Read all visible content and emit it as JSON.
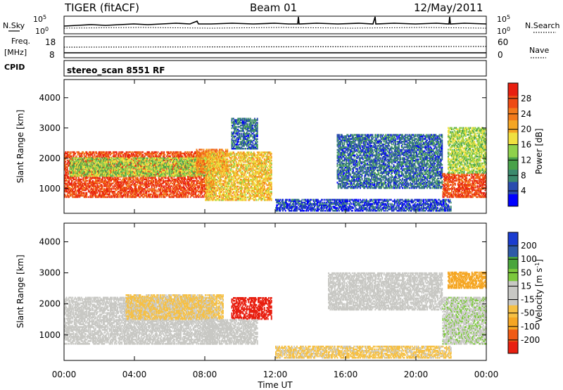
{
  "header": {
    "radar": "TIGER (fitACF)",
    "beam": "Beam 01",
    "date": "12/May/2011"
  },
  "noise_panel": {
    "left_label": "N.Sky",
    "right_label": "N.Search",
    "ticks_top": "10^5",
    "ticks_bottom": "10^0"
  },
  "freq_panel": {
    "left_label_1": "Freq.",
    "left_label_2": "[MHz]",
    "left_tick_top": "18",
    "left_tick_bottom": "8",
    "right_label": "Nave",
    "right_tick_top": "60",
    "right_tick_bottom": "0"
  },
  "cpid_panel": {
    "label": "CPID",
    "text": "stereo_scan 8551 RF"
  },
  "time_axis": {
    "label": "Time UT",
    "ticks": [
      "00:00",
      "04:00",
      "08:00",
      "12:00",
      "16:00",
      "20:00",
      "00:00"
    ]
  },
  "range_axis": {
    "label": "Slant Range [km]",
    "ticks": [
      "1000",
      "2000",
      "3000",
      "4000"
    ]
  },
  "colors": {
    "power_scale": [
      "#0000ff",
      "#2a4cae",
      "#3b8a6e",
      "#49a24a",
      "#8fd14b",
      "#f0e040",
      "#f5a623",
      "#f27a1a",
      "#ee4b14",
      "#e81f10"
    ],
    "velocity_scale": [
      "#e81f10",
      "#f05a14",
      "#f5a623",
      "#f6c044",
      "#c8c8c4",
      "#c8c8c4",
      "#7cc83c",
      "#4aa53c",
      "#2e5aa8",
      "#1a3cd0"
    ]
  },
  "chart_data": [
    {
      "type": "heatmap",
      "title": "",
      "xlabel": "Time UT",
      "ylabel": "Slant Range [km]",
      "xlim": [
        "00:00",
        "24:00"
      ],
      "ylim": [
        180,
        4600
      ],
      "colorbar": {
        "label": "Power [dB]",
        "ticks": [
          "4",
          "8",
          "12",
          "16",
          "20",
          "24",
          "28"
        ],
        "range": [
          0,
          30
        ]
      },
      "regions": [
        {
          "t_start": 0.0,
          "t_end": 8.5,
          "r_min": 700,
          "r_max": 2200,
          "power": 26
        },
        {
          "t_start": 0.3,
          "t_end": 8.0,
          "r_min": 1400,
          "r_max": 2000,
          "power": 14
        },
        {
          "t_start": 7.5,
          "t_end": 9.3,
          "r_min": 1500,
          "r_max": 2300,
          "power": 22
        },
        {
          "t_start": 8.0,
          "t_end": 11.8,
          "r_min": 600,
          "r_max": 2200,
          "power": 18
        },
        {
          "t_start": 9.5,
          "t_end": 11.0,
          "r_min": 2300,
          "r_max": 3300,
          "power": 6
        },
        {
          "t_start": 12.0,
          "t_end": 22.0,
          "r_min": 250,
          "r_max": 650,
          "power": 4
        },
        {
          "t_start": 15.5,
          "t_end": 21.5,
          "r_min": 1000,
          "r_max": 2800,
          "power": 6
        },
        {
          "t_start": 21.5,
          "t_end": 24.0,
          "r_min": 700,
          "r_max": 1500,
          "power": 26
        },
        {
          "t_start": 21.8,
          "t_end": 24.0,
          "r_min": 1500,
          "r_max": 3000,
          "power": 14
        }
      ]
    },
    {
      "type": "heatmap",
      "title": "",
      "xlabel": "Time UT",
      "ylabel": "Slant Range [km]",
      "xlim": [
        "00:00",
        "24:00"
      ],
      "ylim": [
        180,
        4600
      ],
      "colorbar": {
        "label": "Velocity [m s^-1]",
        "ticks": [
          "-200",
          "-100",
          "-50",
          "-15",
          "15",
          "50",
          "100",
          "200"
        ],
        "range": [
          -250,
          250
        ]
      },
      "regions": [
        {
          "t_start": 0.0,
          "t_end": 8.5,
          "r_min": 700,
          "r_max": 2200,
          "velocity": 0
        },
        {
          "t_start": 3.5,
          "t_end": 9.0,
          "r_min": 1500,
          "r_max": 2300,
          "velocity": -60
        },
        {
          "t_start": 9.5,
          "t_end": 11.8,
          "r_min": 1500,
          "r_max": 2200,
          "velocity": -220
        },
        {
          "t_start": 8.0,
          "t_end": 11.0,
          "r_min": 700,
          "r_max": 1500,
          "velocity": 0
        },
        {
          "t_start": 12.0,
          "t_end": 22.0,
          "r_min": 250,
          "r_max": 650,
          "velocity": -60
        },
        {
          "t_start": 15.0,
          "t_end": 21.5,
          "r_min": 1800,
          "r_max": 3000,
          "velocity": 0
        },
        {
          "t_start": 21.5,
          "t_end": 24.0,
          "r_min": 700,
          "r_max": 2200,
          "velocity": 40
        },
        {
          "t_start": 21.8,
          "t_end": 24.0,
          "r_min": 2500,
          "r_max": 3000,
          "velocity": -120
        }
      ]
    }
  ]
}
